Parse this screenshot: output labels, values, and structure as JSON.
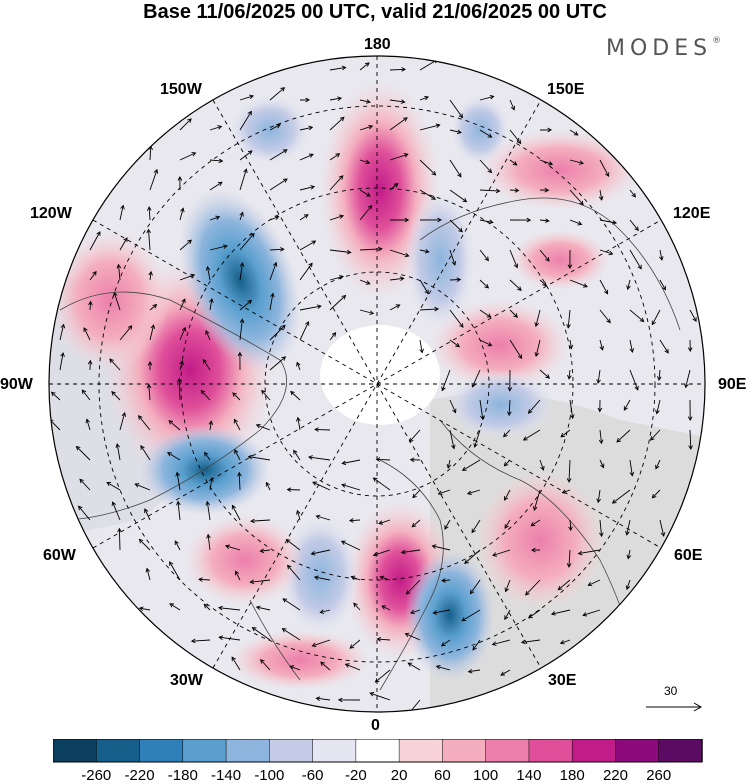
{
  "title": "Base 11/06/2025 00 UTC, valid 21/06/2025 00 UTC",
  "brand": {
    "name": "MODES",
    "mark": "®"
  },
  "longitudes": {
    "top": "180",
    "bottom": "0",
    "left": "90W",
    "right": "90E",
    "upper_left_1": "150W",
    "upper_left_2": "120W",
    "upper_right_1": "150E",
    "upper_right_2": "120E",
    "lower_left_1": "60W",
    "lower_left_2": "30W",
    "lower_right_1": "60E",
    "lower_right_2": "30E"
  },
  "colorbar": {
    "ticks": [
      "-260",
      "-220",
      "-180",
      "-140",
      "-100",
      "-60",
      "-20",
      "20",
      "60",
      "100",
      "140",
      "180",
      "220",
      "260"
    ],
    "colors": [
      "#0a3f5e",
      "#155f8a",
      "#2f80b8",
      "#5a9fce",
      "#8db5dd",
      "#c3cbe6",
      "#e6e6f2",
      "#ffffff",
      "#f8d4d9",
      "#f4aebe",
      "#ec7fab",
      "#df4f9a",
      "#c21c88",
      "#8c0a7c",
      "#5c0b63"
    ]
  },
  "reference_vector": {
    "label": "30"
  },
  "chart_data": {
    "type": "polar-stereographic anomaly map",
    "projection": "north polar stereographic",
    "field": "geopotential height anomaly with wind vectors",
    "contour_levels": [
      -260,
      -220,
      -180,
      -140,
      -100,
      -60,
      -20,
      20,
      60,
      100,
      140,
      180,
      220,
      260
    ],
    "reference_vector_magnitude": 30,
    "anomalies": [
      {
        "name": "positive-center-near-180-70N",
        "sign": "+",
        "approx_value": 180
      },
      {
        "name": "positive-center-90W-60N",
        "sign": "+",
        "approx_value": 180
      },
      {
        "name": "negative-center-110W-65N",
        "sign": "-",
        "approx_value": -140
      },
      {
        "name": "negative-center-70W-50N",
        "sign": "-",
        "approx_value": -180
      },
      {
        "name": "positive-center-10W-55N",
        "sign": "+",
        "approx_value": 140
      },
      {
        "name": "negative-center-20E-50N",
        "sign": "-",
        "approx_value": -180
      },
      {
        "name": "positive-center-110E-70N",
        "sign": "+",
        "approx_value": 140
      },
      {
        "name": "negative-center-80E-60N",
        "sign": "-",
        "approx_value": -100
      },
      {
        "name": "negative-center-160E-55N",
        "sign": "-",
        "approx_value": -100
      }
    ]
  }
}
